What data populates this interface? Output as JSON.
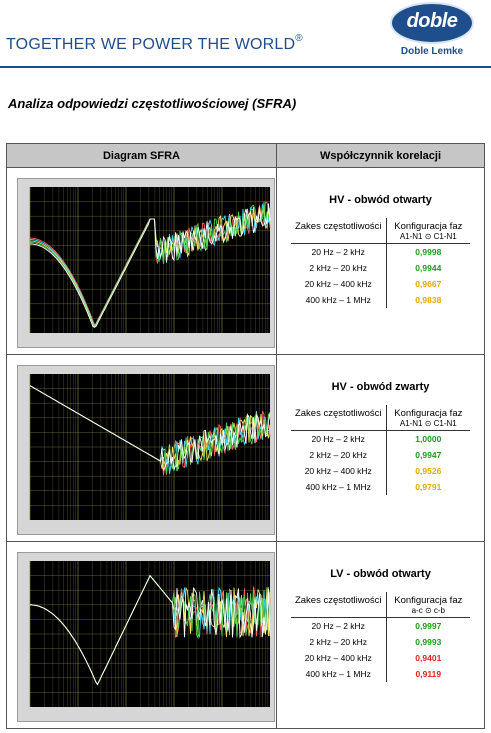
{
  "header": {
    "title": "TOGETHER WE POWER THE WORLD",
    "registered_mark": "®",
    "accent_color": "#1f4e8c"
  },
  "logo": {
    "word": "doble",
    "subtitle": "Doble Lemke"
  },
  "document": {
    "title": "Analiza odpowiedzi częstotliwościowej (SFRA)"
  },
  "table": {
    "col_plot": "Diagram SFRA",
    "col_corr": "Współczynnik korelacji"
  },
  "rows": [
    {
      "title": "HV - obwód otwarty",
      "range_header": "Zakes częstotliwości",
      "config_header": "Konfiguracja faz",
      "config_sub": "A1-N1 ⊙ C1-N1",
      "items": [
        {
          "range": "20 Hz – 2 kHz",
          "value": "0,9998",
          "color": "#1e9b1e"
        },
        {
          "range": "2 kHz – 20 kHz",
          "value": "0,9944",
          "color": "#1e9b1e"
        },
        {
          "range": "20 kHz – 400 kHz",
          "value": "0,9667",
          "color": "#e8a800"
        },
        {
          "range": "400 kHz – 1 MHz",
          "value": "0,9838",
          "color": "#e8a800"
        }
      ]
    },
    {
      "title": "HV - obwód zwarty",
      "range_header": "Zakes częstotliwości",
      "config_header": "Konfiguracja faz",
      "config_sub": "A1-N1 ⊙ C1-N1",
      "items": [
        {
          "range": "20 Hz – 2 kHz",
          "value": "1,0000",
          "color": "#1e9b1e"
        },
        {
          "range": "2 kHz – 20 kHz",
          "value": "0,9947",
          "color": "#1e9b1e"
        },
        {
          "range": "20 kHz – 400 kHz",
          "value": "0,9526",
          "color": "#e8a800"
        },
        {
          "range": "400 kHz – 1 MHz",
          "value": "0,9791",
          "color": "#e8a800"
        }
      ]
    },
    {
      "title": "LV - obwód otwarty",
      "range_header": "Zakes częstotliwości",
      "config_header": "Konfiguracja faz",
      "config_sub": "a-c ⊙ c-b",
      "items": [
        {
          "range": "20 Hz – 2 kHz",
          "value": "0,9997",
          "color": "#1e9b1e"
        },
        {
          "range": "2 kHz – 20 kHz",
          "value": "0,9993",
          "color": "#1e9b1e"
        },
        {
          "range": "20 kHz – 400 kHz",
          "value": "0,9401",
          "color": "#e02020"
        },
        {
          "range": "400 kHz – 1 MHz",
          "value": "0,9119",
          "color": "#e02020"
        }
      ]
    }
  ],
  "plots": {
    "background": "#000000",
    "grid_color": "#7a7a3a",
    "series_colors": [
      "#ff6060",
      "#40e0ff",
      "#f0e060",
      "#50d050",
      "#ffffff"
    ]
  }
}
